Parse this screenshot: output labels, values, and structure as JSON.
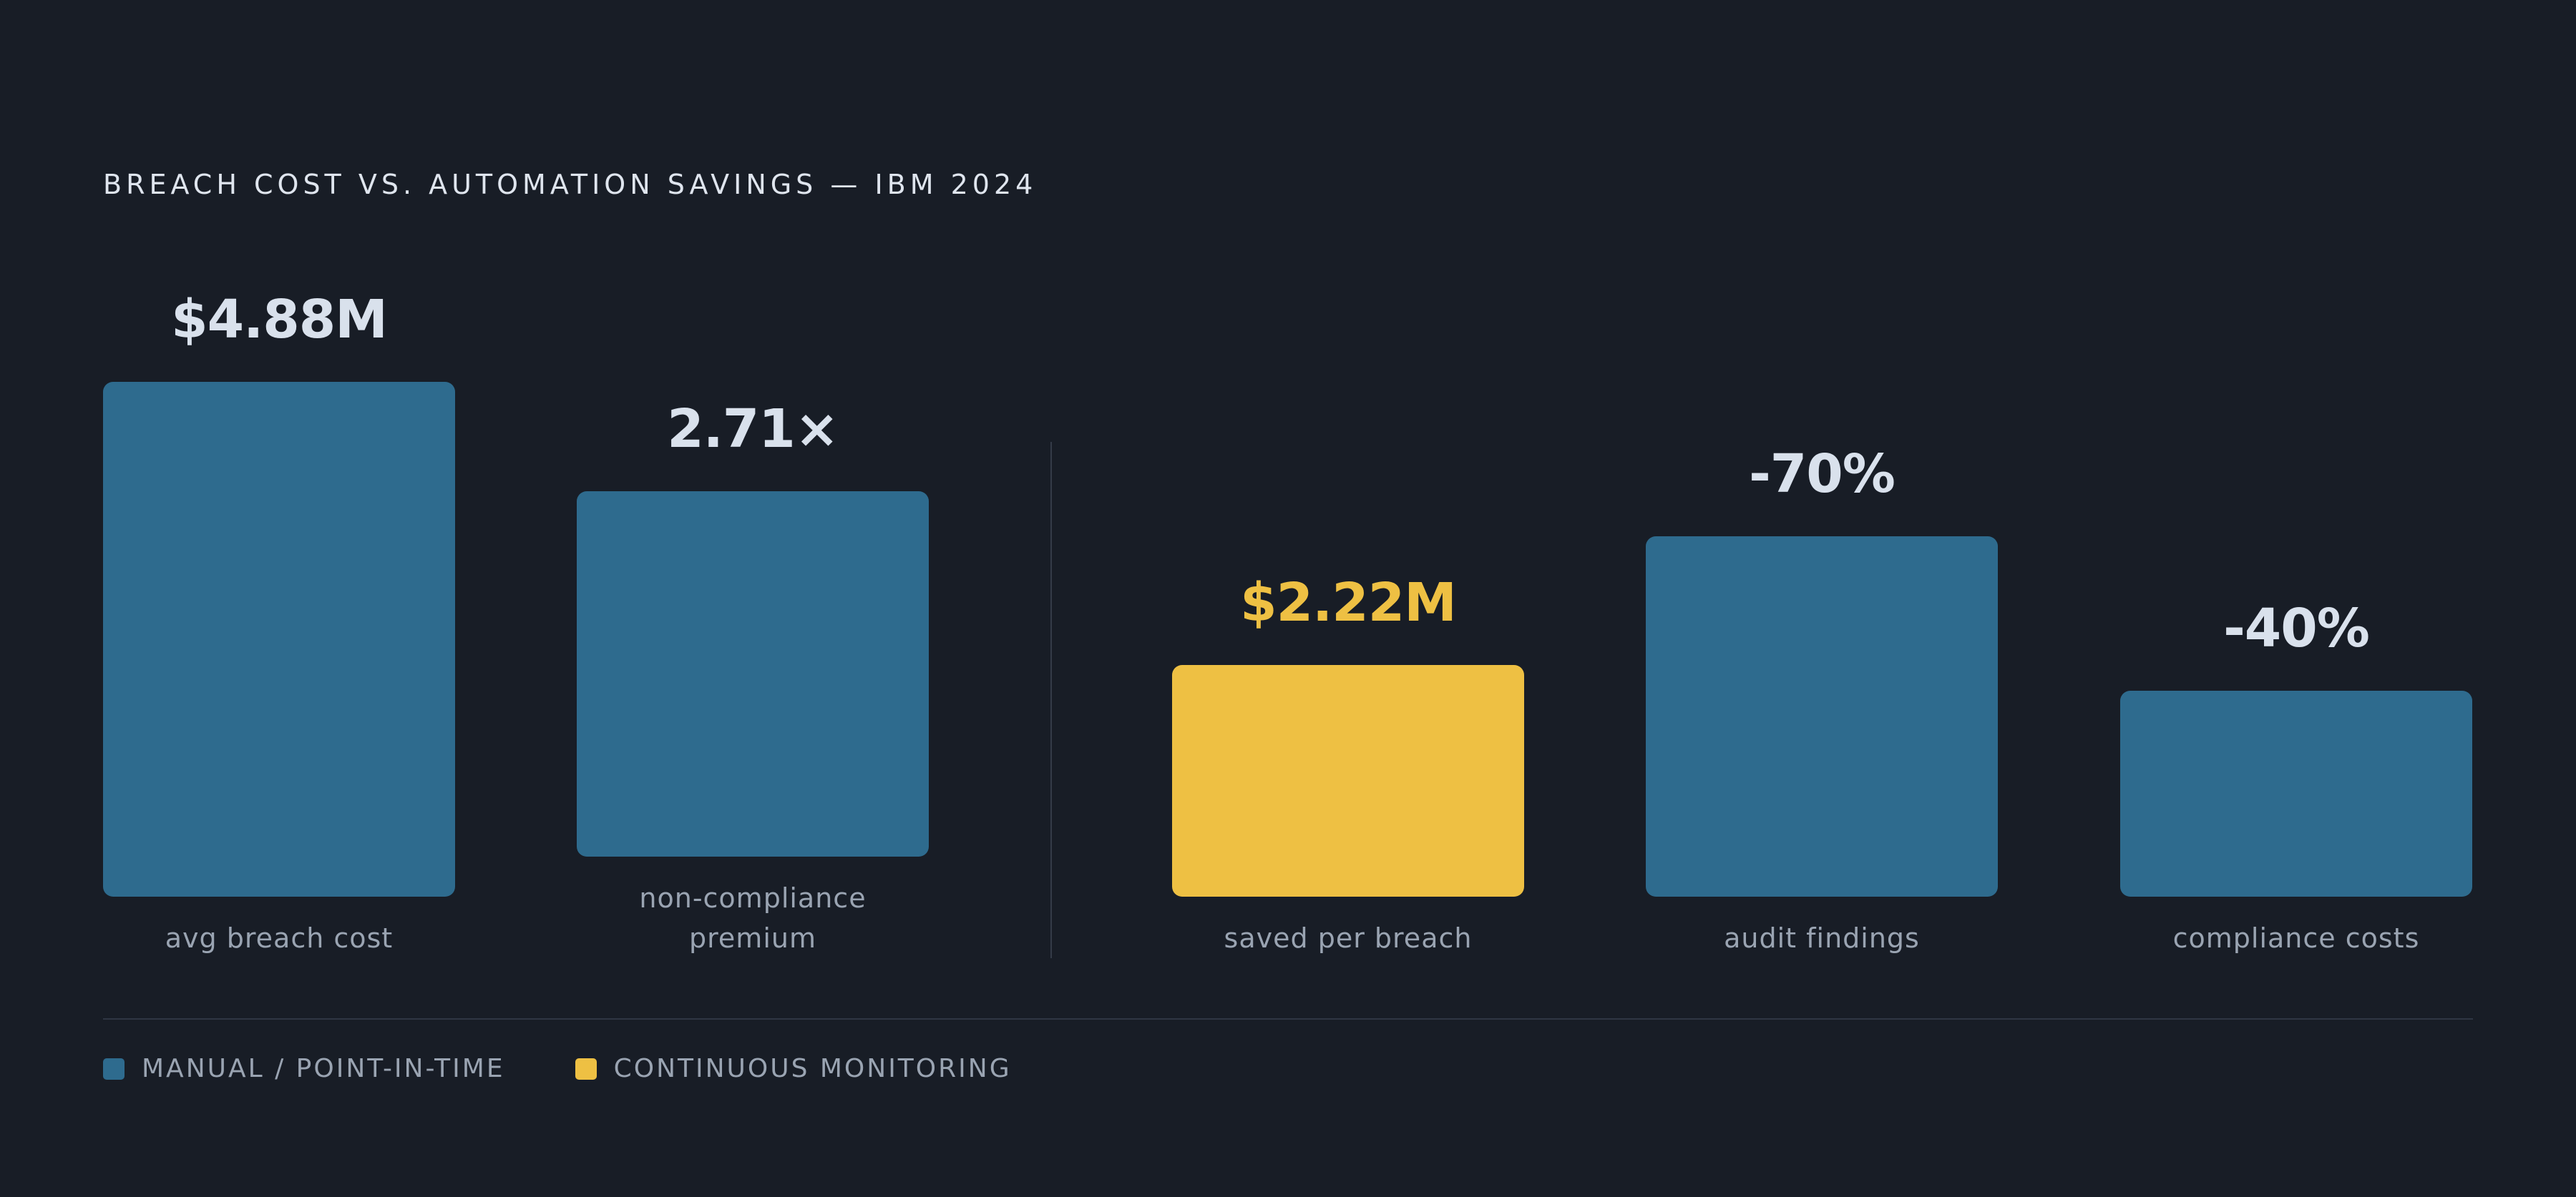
{
  "chart_data": {
    "type": "bar",
    "title": "BREACH COST VS. AUTOMATION SAVINGS — IBM 2024",
    "groups": [
      {
        "bars": [
          {
            "category": "avg breach cost",
            "value": 4.88,
            "label": "$4.88M",
            "series": "MANUAL / POINT-IN-TIME"
          },
          {
            "category": "non-compliance premium",
            "value": 2.71,
            "label": "2.71×",
            "series": "MANUAL / POINT-IN-TIME"
          }
        ]
      },
      {
        "bars": [
          {
            "category": "saved per breach",
            "value": 2.22,
            "label": "$2.22M",
            "series": "CONTINUOUS MONITORING"
          },
          {
            "category": "audit findings",
            "value": 70,
            "label": "-70%",
            "series": "MANUAL / POINT-IN-TIME"
          },
          {
            "category": "compliance costs",
            "value": 40,
            "label": "-40%",
            "series": "MANUAL / POINT-IN-TIME"
          }
        ]
      }
    ],
    "bar_fraction_of_max": [
      1.0,
      0.71,
      0.45,
      0.7,
      0.4
    ],
    "legend": [
      {
        "name": "MANUAL / POINT-IN-TIME",
        "color": "#2e6b8e"
      },
      {
        "name": "CONTINUOUS MONITORING",
        "color": "#eec043"
      }
    ],
    "legend_position": "bottom-left",
    "grid": false
  }
}
